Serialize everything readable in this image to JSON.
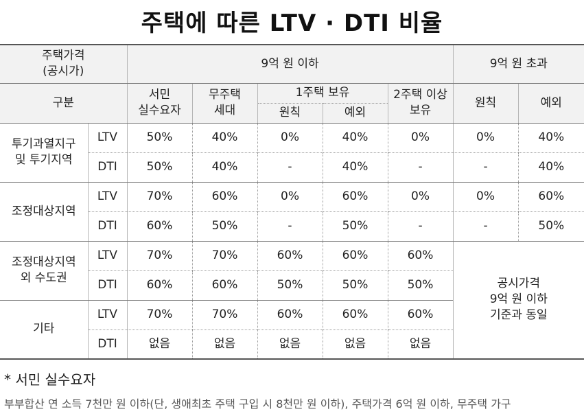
{
  "title": "주택에 따른 LTV · DTI 비율",
  "header": {
    "price_label_line1": "주택가격",
    "price_label_line2": "(공시가)",
    "under_9": "9억 원 이하",
    "over_9": "9억 원 초과",
    "category": "구분",
    "col_low_income_line1": "서민",
    "col_low_income_line2": "실수요자",
    "col_no_house_line1": "무주택",
    "col_no_house_line2": "세대",
    "col_one_house": "1주택 보유",
    "col_two_house_line1": "2주택 이상",
    "col_two_house_line2": "보유",
    "principle": "원칙",
    "exception": "예외"
  },
  "regions": [
    {
      "name_line1": "투기과열지구",
      "name_line2": "및 투기지역",
      "rows": [
        {
          "metric": "LTV",
          "values": [
            "50%",
            "40%",
            "0%",
            "40%",
            "0%",
            "0%",
            "40%"
          ]
        },
        {
          "metric": "DTI",
          "values": [
            "50%",
            "40%",
            "-",
            "40%",
            "-",
            "-",
            "40%"
          ]
        }
      ]
    },
    {
      "name_line1": "조정대상지역",
      "name_line2": "",
      "rows": [
        {
          "metric": "LTV",
          "values": [
            "70%",
            "60%",
            "0%",
            "60%",
            "0%",
            "0%",
            "60%"
          ]
        },
        {
          "metric": "DTI",
          "values": [
            "60%",
            "50%",
            "-",
            "50%",
            "-",
            "-",
            "50%"
          ]
        }
      ]
    },
    {
      "name_line1": "조정대상지역",
      "name_line2": "외 수도권",
      "rows": [
        {
          "metric": "LTV",
          "values": [
            "70%",
            "70%",
            "60%",
            "60%",
            "60%"
          ]
        },
        {
          "metric": "DTI",
          "values": [
            "60%",
            "60%",
            "50%",
            "50%",
            "50%"
          ]
        }
      ]
    },
    {
      "name_line1": "기타",
      "name_line2": "",
      "rows": [
        {
          "metric": "LTV",
          "values": [
            "70%",
            "70%",
            "60%",
            "60%",
            "60%"
          ]
        },
        {
          "metric": "DTI",
          "values": [
            "없음",
            "없음",
            "없음",
            "없음",
            "없음"
          ]
        }
      ]
    }
  ],
  "merged_note": {
    "line1": "공시가격",
    "line2": "9억 원 이하",
    "line3": "기준과 동일"
  },
  "footnote": {
    "title": "* 서민 실수요자",
    "body": "부부합산 연 소득 7천만 원 이하(단, 생애최초 주택 구입 시 8천만 원 이하), 주택가격 6억 원 이하, 무주택 가구"
  }
}
